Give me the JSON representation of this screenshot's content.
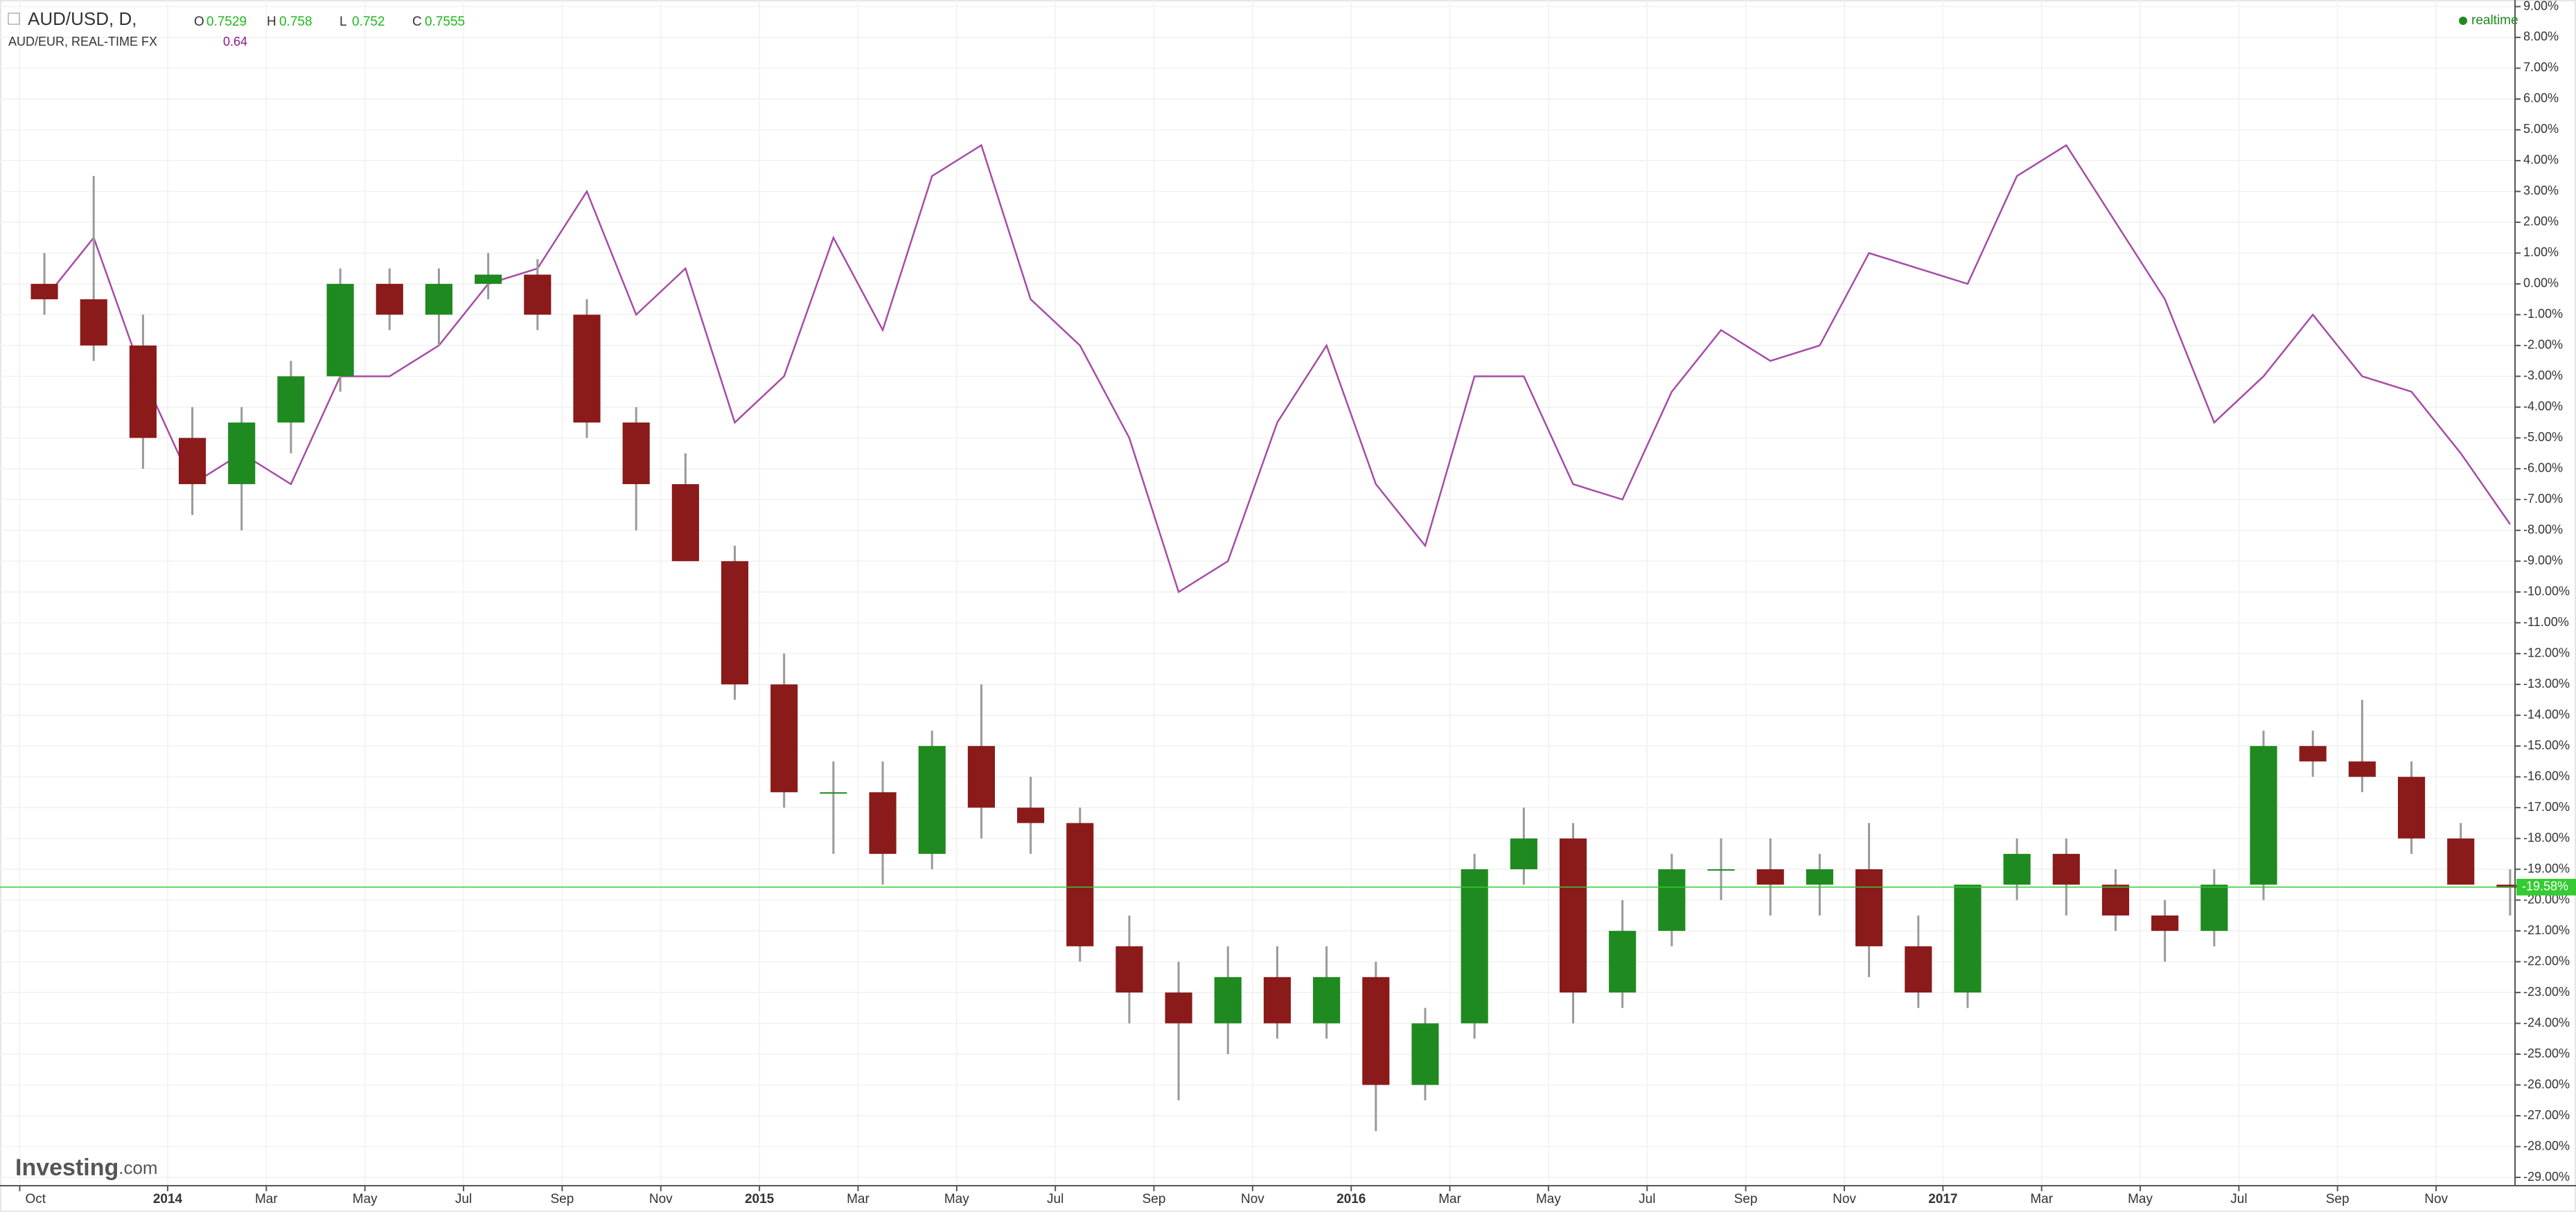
{
  "chart_data": {
    "type": "candlestick",
    "header": {
      "symbol": "AUD/USD, D,",
      "ohlc": [
        {
          "key": "O",
          "value": 0.7529
        },
        {
          "key": "H",
          "value": 0.758
        },
        {
          "key": "L",
          "value": 0.752
        },
        {
          "key": "C",
          "value": 0.7555
        }
      ],
      "compare": "AUD/EUR, REAL-TIME FX",
      "compare_value": 0.64,
      "status": "realtime",
      "brand": "Investing",
      "brand_suffix": ".com"
    },
    "x": [
      0.5,
      1.5,
      2.5,
      3.5,
      4.5,
      5.5,
      6.5,
      7.5,
      8.5,
      9.5,
      10.5,
      11.5,
      12.5,
      13.5,
      14.5,
      15.5,
      16.5,
      17.5,
      18.5,
      19.5,
      20.5,
      21.5,
      22.5,
      23.5,
      24.5,
      25.5,
      26.5,
      27.5,
      28.5,
      29.5,
      30.5,
      31.5,
      32.5,
      33.5,
      34.5,
      35.5,
      36.5,
      37.5,
      38.5,
      39.5,
      40.5,
      41.5,
      42.5,
      43.5,
      44.5,
      45.5,
      46.5,
      47.5,
      48.5,
      49.5,
      50.5
    ],
    "series": [
      {
        "name": "AUD/USD",
        "up_color": "#1f8a1f",
        "down_color": "#8b1a1a",
        "wick_color": "#999999",
        "open": [
          0,
          -0.5,
          -2,
          -5,
          -6.5,
          -4.5,
          -3,
          0,
          -1,
          0,
          0.3,
          -1,
          -4.5,
          -6.5,
          -9,
          -13,
          -16.5,
          -16.5,
          -18.5,
          -15,
          -17,
          -17.5,
          -21.5,
          -23,
          -24,
          -22.5,
          -24,
          -22.5,
          -26,
          -24,
          -19,
          -18,
          -23,
          -21,
          -19,
          -19,
          -19.5,
          -19,
          -21.5,
          -23,
          -19.5,
          -18.5,
          -19.5,
          -20.5,
          -21,
          -19.5,
          -15,
          -15.5,
          -16,
          -18,
          -19.5
        ],
        "high": [
          1,
          3.5,
          -1,
          -4,
          -4,
          -2.5,
          0.5,
          0.5,
          0.5,
          1,
          0.8,
          -0.5,
          -4,
          -5.5,
          -8.5,
          -12,
          -15.5,
          -15.5,
          -14.5,
          -13,
          -16,
          -17,
          -20.5,
          -22,
          -21.5,
          -21.5,
          -21.5,
          -22,
          -23.5,
          -18.5,
          -17,
          -17.5,
          -20,
          -18.5,
          -18,
          -18,
          -18.5,
          -17.5,
          -20.5,
          -19.5,
          -18,
          -18,
          -19,
          -20,
          -19,
          -14.5,
          -14.5,
          -13.5,
          -15.5,
          -17.5,
          -19
        ],
        "low": [
          -1,
          -2.5,
          -6,
          -7.5,
          -8,
          -5.5,
          -3.5,
          -1.5,
          -2,
          -0.5,
          -1.5,
          -5,
          -8,
          -9,
          -13.5,
          -17,
          -18.5,
          -19.5,
          -19,
          -18,
          -18.5,
          -22,
          -24,
          -26.5,
          -25,
          -24.5,
          -24.5,
          -27.5,
          -26.5,
          -24.5,
          -19.5,
          -24,
          -23.5,
          -21.5,
          -20,
          -20.5,
          -20.5,
          -22.5,
          -23.5,
          -23.5,
          -20,
          -20.5,
          -21,
          -22,
          -21.5,
          -20,
          -16,
          -16.5,
          -18.5,
          -19.5,
          -20.5
        ],
        "close": [
          -0.5,
          -2,
          -5,
          -6.5,
          -4.5,
          -3,
          0,
          -1,
          0,
          0.3,
          -1,
          -4.5,
          -6.5,
          -9,
          -13,
          -16.5,
          -16.5,
          -18.5,
          -15,
          -17,
          -17.5,
          -21.5,
          -23,
          -24,
          -22.5,
          -24,
          -22.5,
          -26,
          -24,
          -19,
          -18,
          -23,
          -21,
          -19,
          -19,
          -19.5,
          -19,
          -21.5,
          -23,
          -19.5,
          -18.5,
          -19.5,
          -20.5,
          -21,
          -19.5,
          -15,
          -15.5,
          -16,
          -18,
          -19.5,
          -19.6
        ]
      },
      {
        "name": "AUD/EUR",
        "color": "#a64ca6",
        "values": [
          -0.5,
          1.5,
          -3,
          -6.5,
          -5.5,
          -6.5,
          -3,
          -3,
          -2,
          0,
          0.5,
          3,
          -1,
          0.5,
          -4.5,
          -3,
          1.5,
          -1.5,
          3.5,
          4.5,
          -0.5,
          -2,
          -5,
          -10,
          -9,
          -4.5,
          -2,
          -6.5,
          -8.5,
          -3,
          -3,
          -6.5,
          -7,
          -3.5,
          -1.5,
          -2.5,
          -2,
          1,
          0.5,
          0,
          3.5,
          4.5,
          2,
          -0.5,
          -4.5,
          -3,
          -1,
          -3,
          -3.5,
          -5.5,
          -7.8
        ]
      }
    ],
    "last": {
      "value": -19.58,
      "label": "-19.58%",
      "color": "#33cc33"
    },
    "xlim": [
      -0.4,
      50.6
    ],
    "xticks": [
      {
        "value": 0,
        "label": "Oct"
      },
      {
        "value": 3,
        "label": "2014"
      },
      {
        "value": 5,
        "label": "Mar"
      },
      {
        "value": 7,
        "label": "May"
      },
      {
        "value": 9,
        "label": "Jul"
      },
      {
        "value": 11,
        "label": "Sep"
      },
      {
        "value": 13,
        "label": "Nov"
      },
      {
        "value": 15,
        "label": "2015"
      },
      {
        "value": 17,
        "label": "Mar"
      },
      {
        "value": 19,
        "label": "May"
      },
      {
        "value": 21,
        "label": "Jul"
      },
      {
        "value": 23,
        "label": "Sep"
      },
      {
        "value": 25,
        "label": "Nov"
      },
      {
        "value": 27,
        "label": "2016"
      },
      {
        "value": 29,
        "label": "Mar"
      },
      {
        "value": 31,
        "label": "May"
      },
      {
        "value": 33,
        "label": "Jul"
      },
      {
        "value": 35,
        "label": "Sep"
      },
      {
        "value": 37,
        "label": "Nov"
      },
      {
        "value": 39,
        "label": "2017"
      },
      {
        "value": 41,
        "label": "Mar"
      },
      {
        "value": 43,
        "label": "May"
      },
      {
        "value": 45,
        "label": "Jul"
      },
      {
        "value": 47,
        "label": "Sep"
      },
      {
        "value": 49,
        "label": "Nov"
      }
    ],
    "ylim": [
      -29,
      9
    ],
    "yticks": [
      {
        "value": 9,
        "label": "9.00%"
      },
      {
        "value": 8,
        "label": "8.00%"
      },
      {
        "value": 7,
        "label": "7.00%"
      },
      {
        "value": 6,
        "label": "6.00%"
      },
      {
        "value": 5,
        "label": "5.00%"
      },
      {
        "value": 4,
        "label": "4.00%"
      },
      {
        "value": 3,
        "label": "3.00%"
      },
      {
        "value": 2,
        "label": "2.00%"
      },
      {
        "value": 1,
        "label": "1.00%"
      },
      {
        "value": 0,
        "label": "0.00%"
      },
      {
        "value": -1,
        "label": "-1.00%"
      },
      {
        "value": -2,
        "label": "-2.00%"
      },
      {
        "value": -3,
        "label": "-3.00%"
      },
      {
        "value": -4,
        "label": "-4.00%"
      },
      {
        "value": -5,
        "label": "-5.00%"
      },
      {
        "value": -6,
        "label": "-6.00%"
      },
      {
        "value": -7,
        "label": "-7.00%"
      },
      {
        "value": -8,
        "label": "-8.00%"
      },
      {
        "value": -9,
        "label": "-9.00%"
      },
      {
        "value": -10,
        "label": "-10.00%"
      },
      {
        "value": -11,
        "label": "-11.00%"
      },
      {
        "value": -12,
        "label": "-12.00%"
      },
      {
        "value": -13,
        "label": "-13.00%"
      },
      {
        "value": -14,
        "label": "-14.00%"
      },
      {
        "value": -15,
        "label": "-15.00%"
      },
      {
        "value": -16,
        "label": "-16.00%"
      },
      {
        "value": -17,
        "label": "-17.00%"
      },
      {
        "value": -18,
        "label": "-18.00%"
      },
      {
        "value": -19,
        "label": "-19.00%"
      },
      {
        "value": -20,
        "label": "-20.00%"
      },
      {
        "value": -21,
        "label": "-21.00%"
      },
      {
        "value": -22,
        "label": "-22.00%"
      },
      {
        "value": -23,
        "label": "-23.00%"
      },
      {
        "value": -24,
        "label": "-24.00%"
      },
      {
        "value": -25,
        "label": "-25.00%"
      },
      {
        "value": -26,
        "label": "-26.00%"
      },
      {
        "value": -27,
        "label": "-27.00%"
      },
      {
        "value": -28,
        "label": "-28.00%"
      },
      {
        "value": -29,
        "label": "-29.00%"
      }
    ],
    "grid": true
  }
}
